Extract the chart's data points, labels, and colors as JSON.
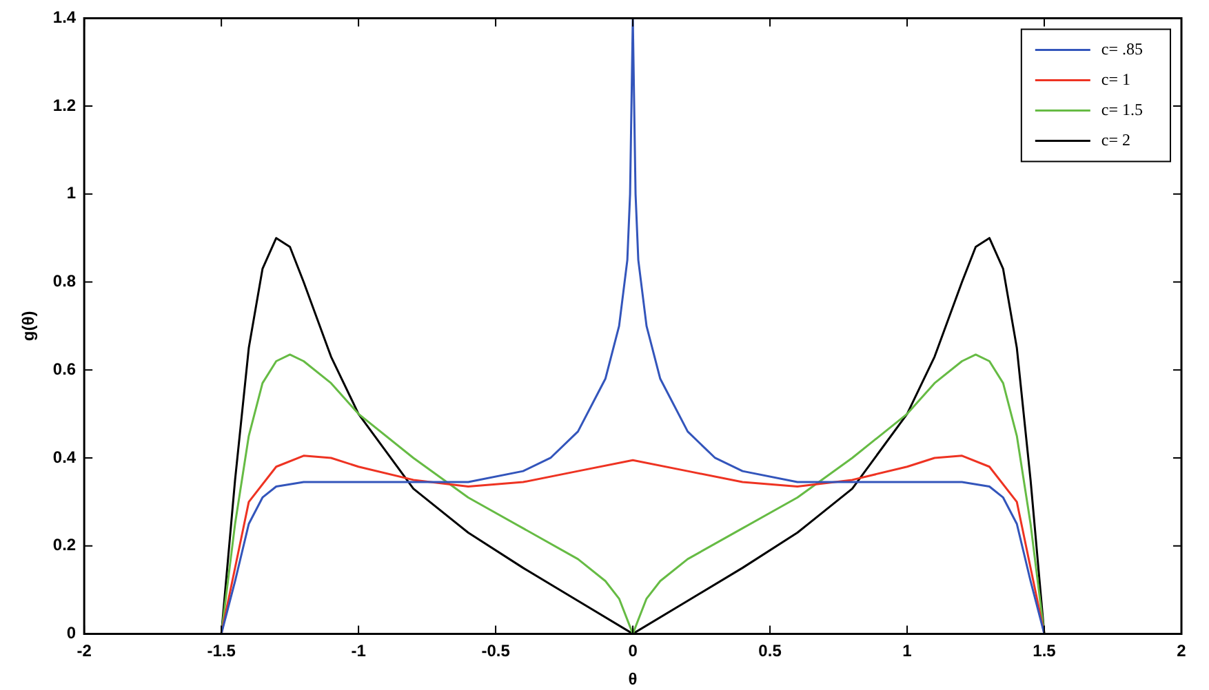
{
  "chart_data": {
    "type": "line",
    "xlabel": "θ",
    "ylabel": "g(θ)",
    "xlim": [
      -2,
      2
    ],
    "ylim": [
      0,
      1.4
    ],
    "xticks": [
      -2,
      -1.5,
      -1,
      -0.5,
      0,
      0.5,
      1,
      1.5,
      2
    ],
    "yticks": [
      0,
      0.2,
      0.4,
      0.6,
      0.8,
      1,
      1.2,
      1.4
    ],
    "grid": false,
    "legend": "top right",
    "marker": "none",
    "line_style": "solid",
    "series": [
      {
        "name": "c= .85",
        "color": "#3355bb",
        "x": [
          -1.5,
          -1.45,
          -1.4,
          -1.35,
          -1.3,
          -1.2,
          -1,
          -0.8,
          -0.6,
          -0.4,
          -0.3,
          -0.2,
          -0.1,
          -0.05,
          -0.02,
          -0.01,
          0,
          0.01,
          0.02,
          0.05,
          0.1,
          0.2,
          0.3,
          0.4,
          0.6,
          0.8,
          1,
          1.2,
          1.3,
          1.35,
          1.4,
          1.45,
          1.5
        ],
        "values": [
          0,
          0.12,
          0.25,
          0.31,
          0.335,
          0.345,
          0.345,
          0.345,
          0.345,
          0.37,
          0.4,
          0.46,
          0.58,
          0.7,
          0.85,
          1,
          1.4,
          1,
          0.85,
          0.7,
          0.58,
          0.46,
          0.4,
          0.37,
          0.345,
          0.345,
          0.345,
          0.345,
          0.335,
          0.31,
          0.25,
          0.12,
          0
        ]
      },
      {
        "name": "c= 1",
        "color": "#ee3322",
        "x": [
          -1.5,
          -1.45,
          -1.4,
          -1.3,
          -1.2,
          -1.1,
          -1,
          -0.8,
          -0.6,
          -0.4,
          -0.2,
          0,
          0.2,
          0.4,
          0.6,
          0.8,
          1,
          1.1,
          1.2,
          1.3,
          1.4,
          1.45,
          1.5
        ],
        "values": [
          0,
          0.15,
          0.3,
          0.38,
          0.405,
          0.4,
          0.38,
          0.35,
          0.335,
          0.345,
          0.37,
          0.395,
          0.37,
          0.345,
          0.335,
          0.35,
          0.38,
          0.4,
          0.405,
          0.38,
          0.3,
          0.15,
          0
        ]
      },
      {
        "name": "c= 1.5",
        "color": "#66bb44",
        "x": [
          -1.5,
          -1.45,
          -1.4,
          -1.35,
          -1.3,
          -1.25,
          -1.2,
          -1.1,
          -1,
          -0.8,
          -0.6,
          -0.4,
          -0.2,
          -0.1,
          -0.05,
          0,
          0.05,
          0.1,
          0.2,
          0.4,
          0.6,
          0.8,
          1,
          1.1,
          1.2,
          1.25,
          1.3,
          1.35,
          1.4,
          1.45,
          1.5
        ],
        "values": [
          0,
          0.25,
          0.45,
          0.57,
          0.62,
          0.635,
          0.62,
          0.57,
          0.5,
          0.4,
          0.31,
          0.24,
          0.17,
          0.12,
          0.08,
          0,
          0.08,
          0.12,
          0.17,
          0.24,
          0.31,
          0.4,
          0.5,
          0.57,
          0.62,
          0.635,
          0.62,
          0.57,
          0.45,
          0.25,
          0
        ]
      },
      {
        "name": "c= 2",
        "color": "#000000",
        "x": [
          -1.5,
          -1.45,
          -1.4,
          -1.35,
          -1.3,
          -1.25,
          -1.2,
          -1.1,
          -1,
          -0.8,
          -0.6,
          -0.4,
          -0.2,
          0,
          0.2,
          0.4,
          0.6,
          0.8,
          1,
          1.1,
          1.2,
          1.25,
          1.3,
          1.35,
          1.4,
          1.45,
          1.5
        ],
        "values": [
          0,
          0.35,
          0.65,
          0.83,
          0.9,
          0.88,
          0.8,
          0.63,
          0.5,
          0.33,
          0.23,
          0.15,
          0.075,
          0,
          0.075,
          0.15,
          0.23,
          0.33,
          0.5,
          0.63,
          0.8,
          0.88,
          0.9,
          0.83,
          0.65,
          0.35,
          0
        ]
      }
    ]
  }
}
